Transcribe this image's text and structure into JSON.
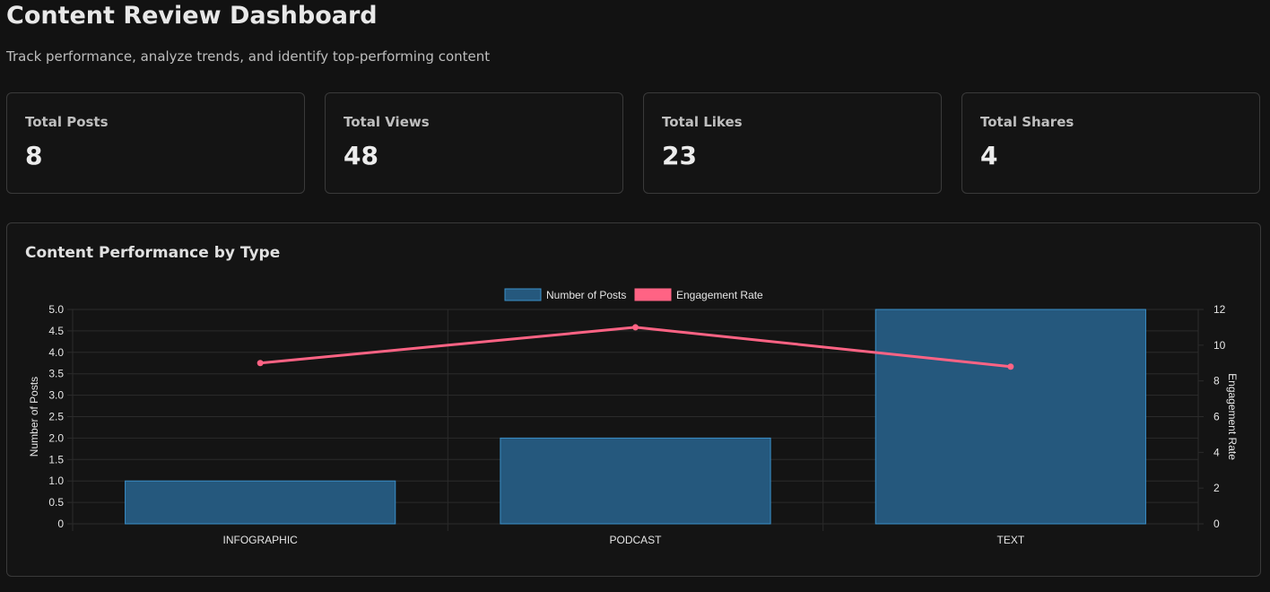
{
  "header": {
    "title": "Content Review Dashboard",
    "subtitle": "Track performance, analyze trends, and identify top-performing content"
  },
  "stats": [
    {
      "label": "Total Posts",
      "value": "8"
    },
    {
      "label": "Total Views",
      "value": "48"
    },
    {
      "label": "Total Likes",
      "value": "23"
    },
    {
      "label": "Total Shares",
      "value": "4"
    }
  ],
  "chart_card": {
    "title": "Content Performance by Type"
  },
  "colors": {
    "bar_fill": "#25587d",
    "bar_border": "#3a8fc9",
    "line": "#ff6384",
    "grid": "#2b2b2b"
  },
  "chart_data": {
    "type": "bar",
    "title": "Content Performance by Type",
    "categories": [
      "INFOGRAPHIC",
      "PODCAST",
      "TEXT"
    ],
    "series": [
      {
        "name": "Number of Posts",
        "type": "bar",
        "axis": "left",
        "values": [
          1,
          2,
          5
        ]
      },
      {
        "name": "Engagement Rate",
        "type": "line",
        "axis": "right",
        "values": [
          9.0,
          11.0,
          8.8
        ]
      }
    ],
    "y_left": {
      "label": "Number of Posts",
      "range": [
        0,
        5
      ],
      "ticks": [
        "0",
        "0.5",
        "1.0",
        "1.5",
        "2.0",
        "2.5",
        "3.0",
        "3.5",
        "4.0",
        "4.5",
        "5.0"
      ]
    },
    "y_right": {
      "label": "Engagement Rate",
      "range": [
        0,
        12
      ],
      "ticks": [
        "0",
        "2",
        "4",
        "6",
        "8",
        "10",
        "12"
      ]
    },
    "legend": "top",
    "grid": true
  }
}
